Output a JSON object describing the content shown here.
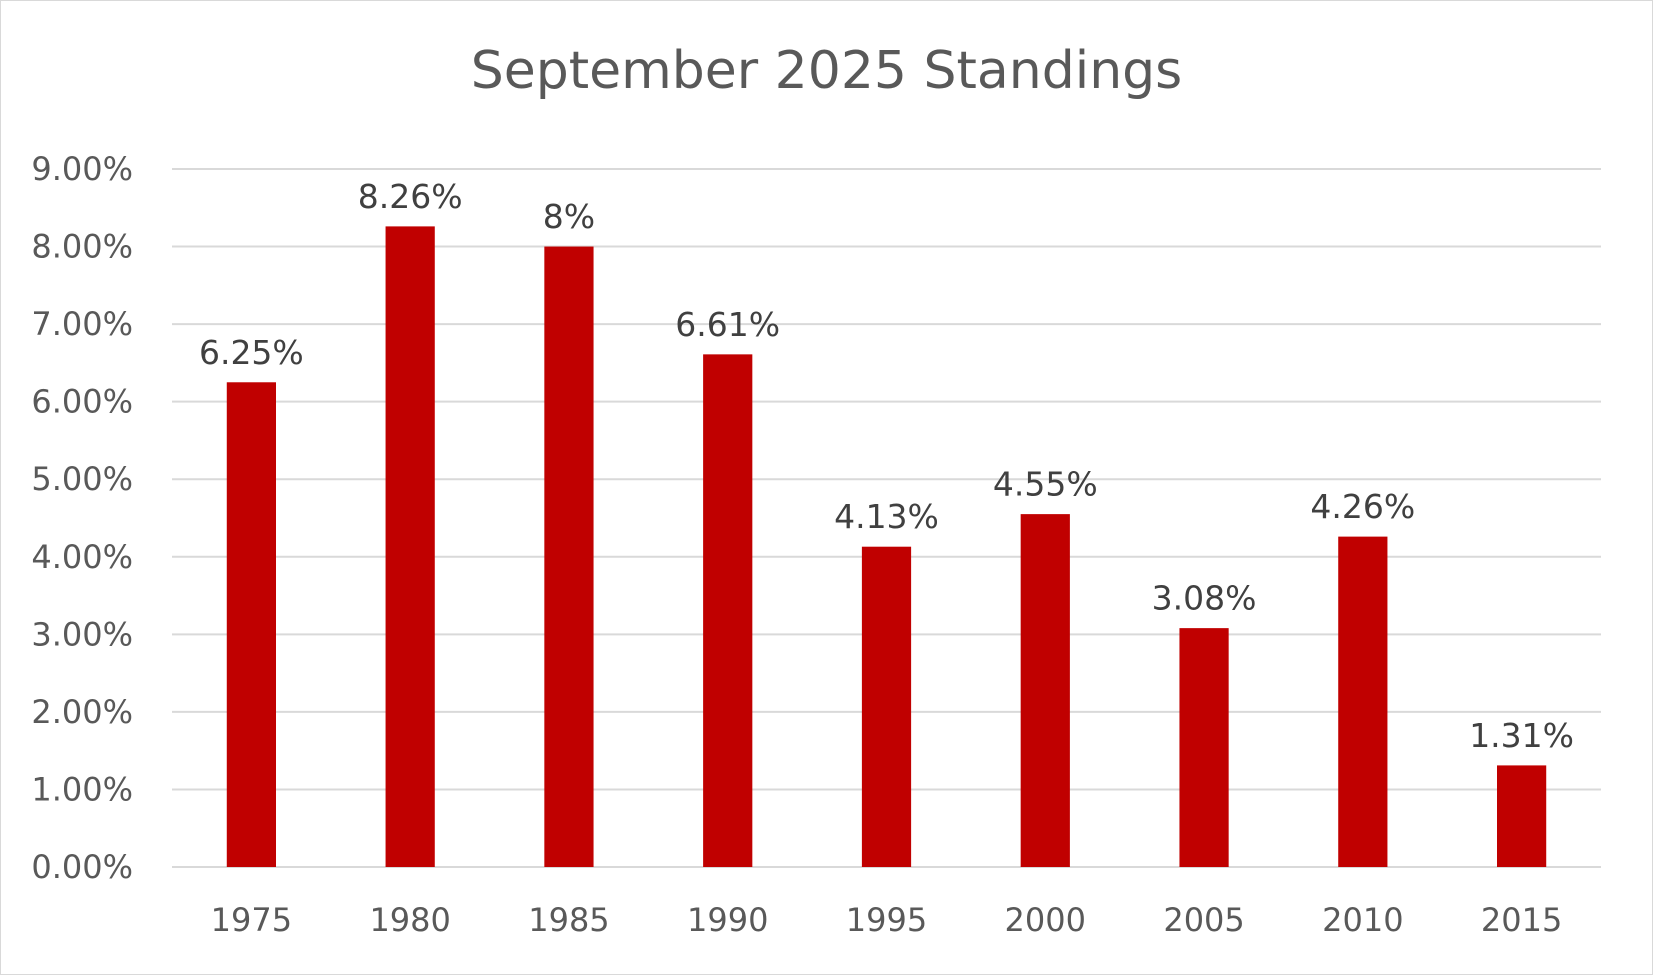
{
  "chart_data": {
    "type": "bar",
    "title": "September 2025 Standings",
    "xlabel": "",
    "ylabel": "",
    "categories": [
      "1975",
      "1980",
      "1985",
      "1990",
      "1995",
      "2000",
      "2005",
      "2010",
      "2015"
    ],
    "values": [
      6.25,
      8.26,
      8,
      6.61,
      4.13,
      4.55,
      3.08,
      4.26,
      1.31
    ],
    "data_labels": [
      "6.25%",
      "8.26%",
      "8%",
      "6.61%",
      "4.13%",
      "4.55%",
      "3.08%",
      "4.26%",
      "1.31%"
    ],
    "y_ticks": [
      0,
      1,
      2,
      3,
      4,
      5,
      6,
      7,
      8,
      9
    ],
    "y_tick_labels": [
      "0.00%",
      "1.00%",
      "2.00%",
      "3.00%",
      "4.00%",
      "5.00%",
      "6.00%",
      "7.00%",
      "8.00%",
      "9.00%"
    ],
    "ylim": [
      0,
      9
    ],
    "grid": true,
    "legend": "none",
    "colors": {
      "bar": "#c00000",
      "grid": "#d9d9d9",
      "text": "#595959",
      "data_label": "#404040"
    }
  }
}
